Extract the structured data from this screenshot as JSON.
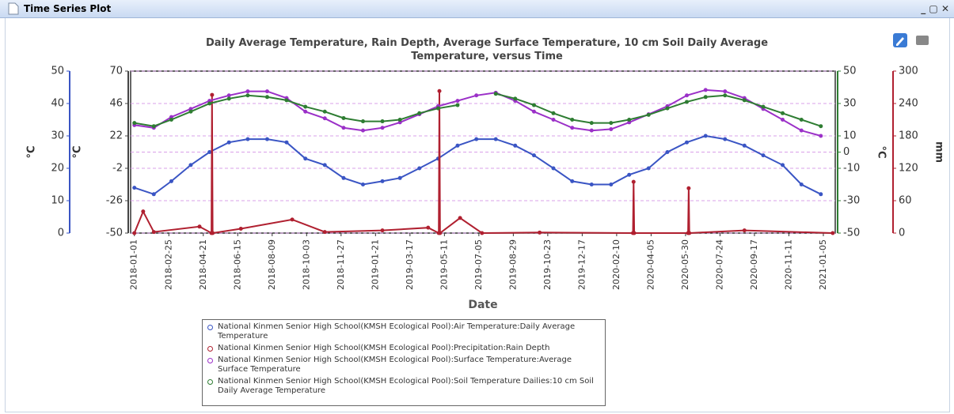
{
  "window_title": "Time Series Plot",
  "chart_data": {
    "type": "line",
    "title": "Daily Average Temperature, Rain Depth, Average Surface Temperature, 10 cm Soil Daily Average Temperature, versus Time",
    "x_label": "Date",
    "grid": true,
    "xlim": [
      "2017-12-26",
      "2021-01-24"
    ],
    "xticks": [
      "2018-01-01",
      "2018-02-25",
      "2018-04-21",
      "2018-06-15",
      "2018-08-09",
      "2018-10-03",
      "2018-11-27",
      "2019-01-21",
      "2019-03-17",
      "2019-05-11",
      "2019-07-05",
      "2019-08-29",
      "2019-10-23",
      "2019-12-17",
      "2020-02-10",
      "2020-04-05",
      "2020-05-30",
      "2020-07-24",
      "2020-09-17",
      "2020-11-11",
      "2021-01-05"
    ],
    "yaxes": [
      {
        "label": "°C",
        "color": "#3a55c4",
        "lim": [
          0,
          50
        ],
        "ticks": [
          0,
          10,
          20,
          30,
          40,
          50
        ]
      },
      {
        "label": "°C",
        "color": "#444444",
        "lim": [
          -50,
          70
        ],
        "ticks": [
          -50,
          -26,
          -2,
          22,
          46,
          70
        ]
      },
      {
        "label": "°C",
        "color": "#2e7d32",
        "lim": [
          -50,
          50
        ],
        "ticks": [
          -50,
          -30,
          -10,
          0,
          10,
          30,
          50
        ]
      },
      {
        "label": "mm",
        "color": "#b02030",
        "lim": [
          0,
          300
        ],
        "ticks": [
          0,
          60,
          120,
          180,
          240,
          300
        ]
      }
    ],
    "x": [
      "2018-01-01",
      "2018-02-01",
      "2018-03-01",
      "2018-04-01",
      "2018-05-01",
      "2018-06-01",
      "2018-07-01",
      "2018-08-01",
      "2018-09-01",
      "2018-10-01",
      "2018-11-01",
      "2018-12-01",
      "2019-01-01",
      "2019-02-01",
      "2019-03-01",
      "2019-04-01",
      "2019-05-01",
      "2019-06-01",
      "2019-07-01",
      "2019-08-01",
      "2019-09-01",
      "2019-10-01",
      "2019-11-01",
      "2019-12-01",
      "2020-01-01",
      "2020-02-01",
      "2020-03-01",
      "2020-04-01",
      "2020-05-01",
      "2020-06-01",
      "2020-07-01",
      "2020-08-01",
      "2020-09-01",
      "2020-10-01",
      "2020-11-01",
      "2020-12-01",
      "2021-01-01"
    ],
    "series": [
      {
        "name": "National Kinmen Senior High School(KMSH Ecological Pool):Air Temperature:Daily Average Temperature",
        "color": "#3a55c4",
        "axis": 0,
        "values": [
          14,
          12,
          16,
          21,
          25,
          28,
          29,
          29,
          28,
          23,
          21,
          17,
          15,
          16,
          17,
          20,
          23,
          27,
          29,
          29,
          27,
          24,
          20,
          16,
          15,
          15,
          18,
          20,
          25,
          28,
          30,
          29,
          27,
          24,
          21,
          15,
          12
        ]
      },
      {
        "name": "National Kinmen Senior High School(KMSH Ecological Pool):Precipitation:Rain Depth",
        "color": "#b02030",
        "axis": 3,
        "x": [
          "2018-01-01",
          "2018-01-15",
          "2018-02-01",
          "2018-04-15",
          "2018-05-04",
          "2018-05-05",
          "2018-05-06",
          "2018-06-20",
          "2018-09-10",
          "2018-11-01",
          "2019-02-01",
          "2019-04-15",
          "2019-05-02",
          "2019-05-03",
          "2019-05-04",
          "2019-06-05",
          "2019-07-10",
          "2019-10-10",
          "2020-03-07",
          "2020-03-08",
          "2020-03-09",
          "2020-06-03",
          "2020-06-04",
          "2020-06-05",
          "2020-09-01",
          "2021-01-20"
        ],
        "values": [
          0,
          40,
          2,
          12,
          0,
          256,
          0,
          8,
          25,
          2,
          5,
          10,
          0,
          263,
          0,
          28,
          0,
          1,
          0,
          95,
          0,
          0,
          83,
          0,
          5,
          0
        ]
      },
      {
        "name": "National Kinmen Senior High School(KMSH Ecological Pool):Surface Temperature:Average Surface Temperature",
        "color": "#9b30c8",
        "axis": 1,
        "values": [
          30,
          28,
          36,
          42,
          48,
          52,
          55,
          55,
          50,
          40,
          35,
          28,
          26,
          28,
          32,
          38,
          44,
          48,
          52,
          54,
          48,
          40,
          34,
          28,
          26,
          27,
          32,
          38,
          44,
          52,
          56,
          55,
          50,
          42,
          34,
          26,
          22
        ]
      },
      {
        "name": "National Kinmen Senior High School(KMSH Ecological Pool):Soil Temperature Dailies:10 cm Soil Daily Average Temperature",
        "color": "#2e7d32",
        "axis": 2,
        "values": [
          18,
          16,
          20,
          25,
          30,
          33,
          35,
          34,
          32,
          28,
          25,
          21,
          19,
          19,
          20,
          24,
          27,
          29,
          null,
          36,
          33,
          29,
          24,
          20,
          18,
          18,
          20,
          23,
          27,
          31,
          34,
          35,
          32,
          28,
          24,
          20,
          16
        ]
      }
    ]
  }
}
